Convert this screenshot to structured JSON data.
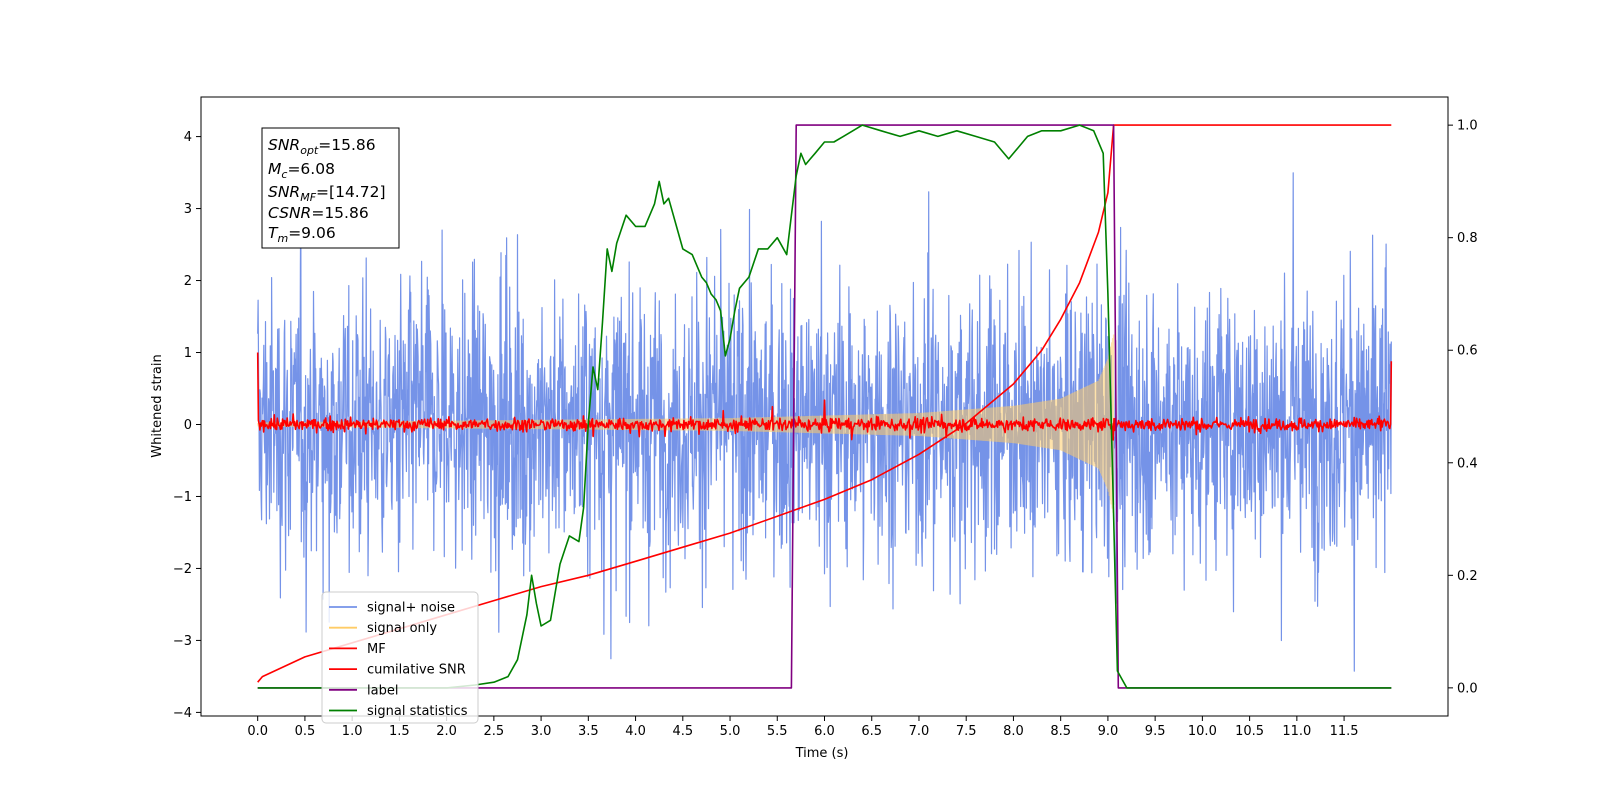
{
  "chart_data": {
    "type": "line",
    "title": "",
    "xlabel": "Time (s)",
    "ylabel": "Whitened strain",
    "xlim": [
      -0.6,
      12.6
    ],
    "ylim": [
      -4.05,
      4.55
    ],
    "y2lim": [
      -0.05,
      1.05
    ],
    "grid": false,
    "legend_position": "lower-left",
    "x_ticks": [
      "0.0",
      "0.5",
      "1.0",
      "1.5",
      "2.0",
      "2.5",
      "3.0",
      "3.5",
      "4.0",
      "4.5",
      "5.0",
      "5.5",
      "6.0",
      "6.5",
      "7.0",
      "7.5",
      "8.0",
      "8.5",
      "9.0",
      "9.5",
      "10.0",
      "10.5",
      "11.0",
      "11.5"
    ],
    "y_ticks": [
      "−4",
      "−3",
      "−2",
      "−1",
      "0",
      "1",
      "2",
      "3",
      "4"
    ],
    "y2_ticks": [
      "0.0",
      "0.2",
      "0.4",
      "0.6",
      "0.8",
      "1.0"
    ],
    "annotation": {
      "snr_opt": {
        "base": "SNR",
        "sub": "opt",
        "value": "=15.86"
      },
      "mc": {
        "base": "M",
        "sub": "c",
        "value": "=6.08"
      },
      "snr_mf": {
        "base": "SNR",
        "sub": "MF",
        "value": "=[14.72]"
      },
      "csnr": {
        "base": "CSNR",
        "value": "=15.86"
      },
      "tm": {
        "base": "T",
        "sub": "m",
        "value": "=9.06"
      }
    },
    "series": [
      {
        "name": "signal+ noise",
        "color": "#7593e8",
        "axis": "left",
        "kind": "noise",
        "x_range": [
          0,
          12
        ],
        "sigma": 0.95
      },
      {
        "name": "signal only",
        "color": "#ffcc66",
        "axis": "left",
        "kind": "chirp",
        "x_range": [
          0,
          9.06
        ],
        "envelope": [
          [
            0,
            0.02
          ],
          [
            5.0,
            0.08
          ],
          [
            7.0,
            0.15
          ],
          [
            8.0,
            0.25
          ],
          [
            8.5,
            0.35
          ],
          [
            8.9,
            0.6
          ],
          [
            9.0,
            0.9
          ],
          [
            9.06,
            1.25
          ]
        ]
      },
      {
        "name": "MF",
        "color": "#ff0000",
        "axis": "left",
        "kind": "mf",
        "x_range": [
          0,
          12
        ],
        "edge_values": [
          1.0,
          0.88
        ]
      },
      {
        "name": "cumilative SNR",
        "color": "#ff0000",
        "axis": "right",
        "kind": "line",
        "x": [
          0,
          0.05,
          0.5,
          1.0,
          1.5,
          2.0,
          2.5,
          3.0,
          3.5,
          4.0,
          4.5,
          5.0,
          5.5,
          6.0,
          6.5,
          7.0,
          7.5,
          8.0,
          8.3,
          8.5,
          8.7,
          8.9,
          9.0,
          9.06,
          9.1,
          12.0
        ],
        "y": [
          0.01,
          0.02,
          0.055,
          0.08,
          0.105,
          0.13,
          0.155,
          0.18,
          0.2,
          0.225,
          0.25,
          0.275,
          0.305,
          0.335,
          0.37,
          0.415,
          0.47,
          0.54,
          0.6,
          0.655,
          0.72,
          0.81,
          0.88,
          1.0,
          1.0,
          1.0
        ]
      },
      {
        "name": "label",
        "color": "#800080",
        "axis": "right",
        "kind": "line",
        "x": [
          0,
          5.65,
          5.7,
          9.06,
          9.11,
          12.0
        ],
        "y": [
          0,
          0,
          1,
          1,
          0,
          0
        ]
      },
      {
        "name": "signal statistics",
        "color": "#008000",
        "axis": "right",
        "kind": "line",
        "x": [
          0,
          0.5,
          1.0,
          1.5,
          2.0,
          2.3,
          2.5,
          2.65,
          2.75,
          2.85,
          2.9,
          2.95,
          3.0,
          3.1,
          3.2,
          3.3,
          3.4,
          3.45,
          3.5,
          3.55,
          3.6,
          3.65,
          3.7,
          3.75,
          3.8,
          3.9,
          4.0,
          4.1,
          4.2,
          4.25,
          4.3,
          4.35,
          4.45,
          4.5,
          4.6,
          4.7,
          4.75,
          4.8,
          4.85,
          4.9,
          4.95,
          5.0,
          5.05,
          5.1,
          5.2,
          5.3,
          5.4,
          5.5,
          5.6,
          5.65,
          5.7,
          5.75,
          5.8,
          5.85,
          5.9,
          6.0,
          6.1,
          6.2,
          6.3,
          6.4,
          6.6,
          6.8,
          7.0,
          7.2,
          7.4,
          7.6,
          7.8,
          7.95,
          8.05,
          8.15,
          8.3,
          8.5,
          8.7,
          8.85,
          8.95,
          9.0,
          9.05,
          9.1,
          9.2,
          12.0
        ],
        "y": [
          0.0,
          0.0,
          0.0,
          0.0,
          0.0,
          0.005,
          0.01,
          0.02,
          0.05,
          0.13,
          0.2,
          0.15,
          0.11,
          0.12,
          0.22,
          0.27,
          0.26,
          0.32,
          0.47,
          0.57,
          0.53,
          0.65,
          0.78,
          0.74,
          0.79,
          0.84,
          0.82,
          0.82,
          0.86,
          0.9,
          0.86,
          0.87,
          0.81,
          0.78,
          0.77,
          0.73,
          0.72,
          0.7,
          0.69,
          0.67,
          0.59,
          0.62,
          0.67,
          0.71,
          0.73,
          0.78,
          0.78,
          0.8,
          0.77,
          0.84,
          0.91,
          0.95,
          0.93,
          0.94,
          0.95,
          0.97,
          0.97,
          0.98,
          0.99,
          1.0,
          0.99,
          0.98,
          0.99,
          0.98,
          0.99,
          0.98,
          0.97,
          0.94,
          0.96,
          0.98,
          0.99,
          0.99,
          1.0,
          0.99,
          0.95,
          0.7,
          0.38,
          0.03,
          0.0,
          0.0
        ]
      }
    ]
  }
}
